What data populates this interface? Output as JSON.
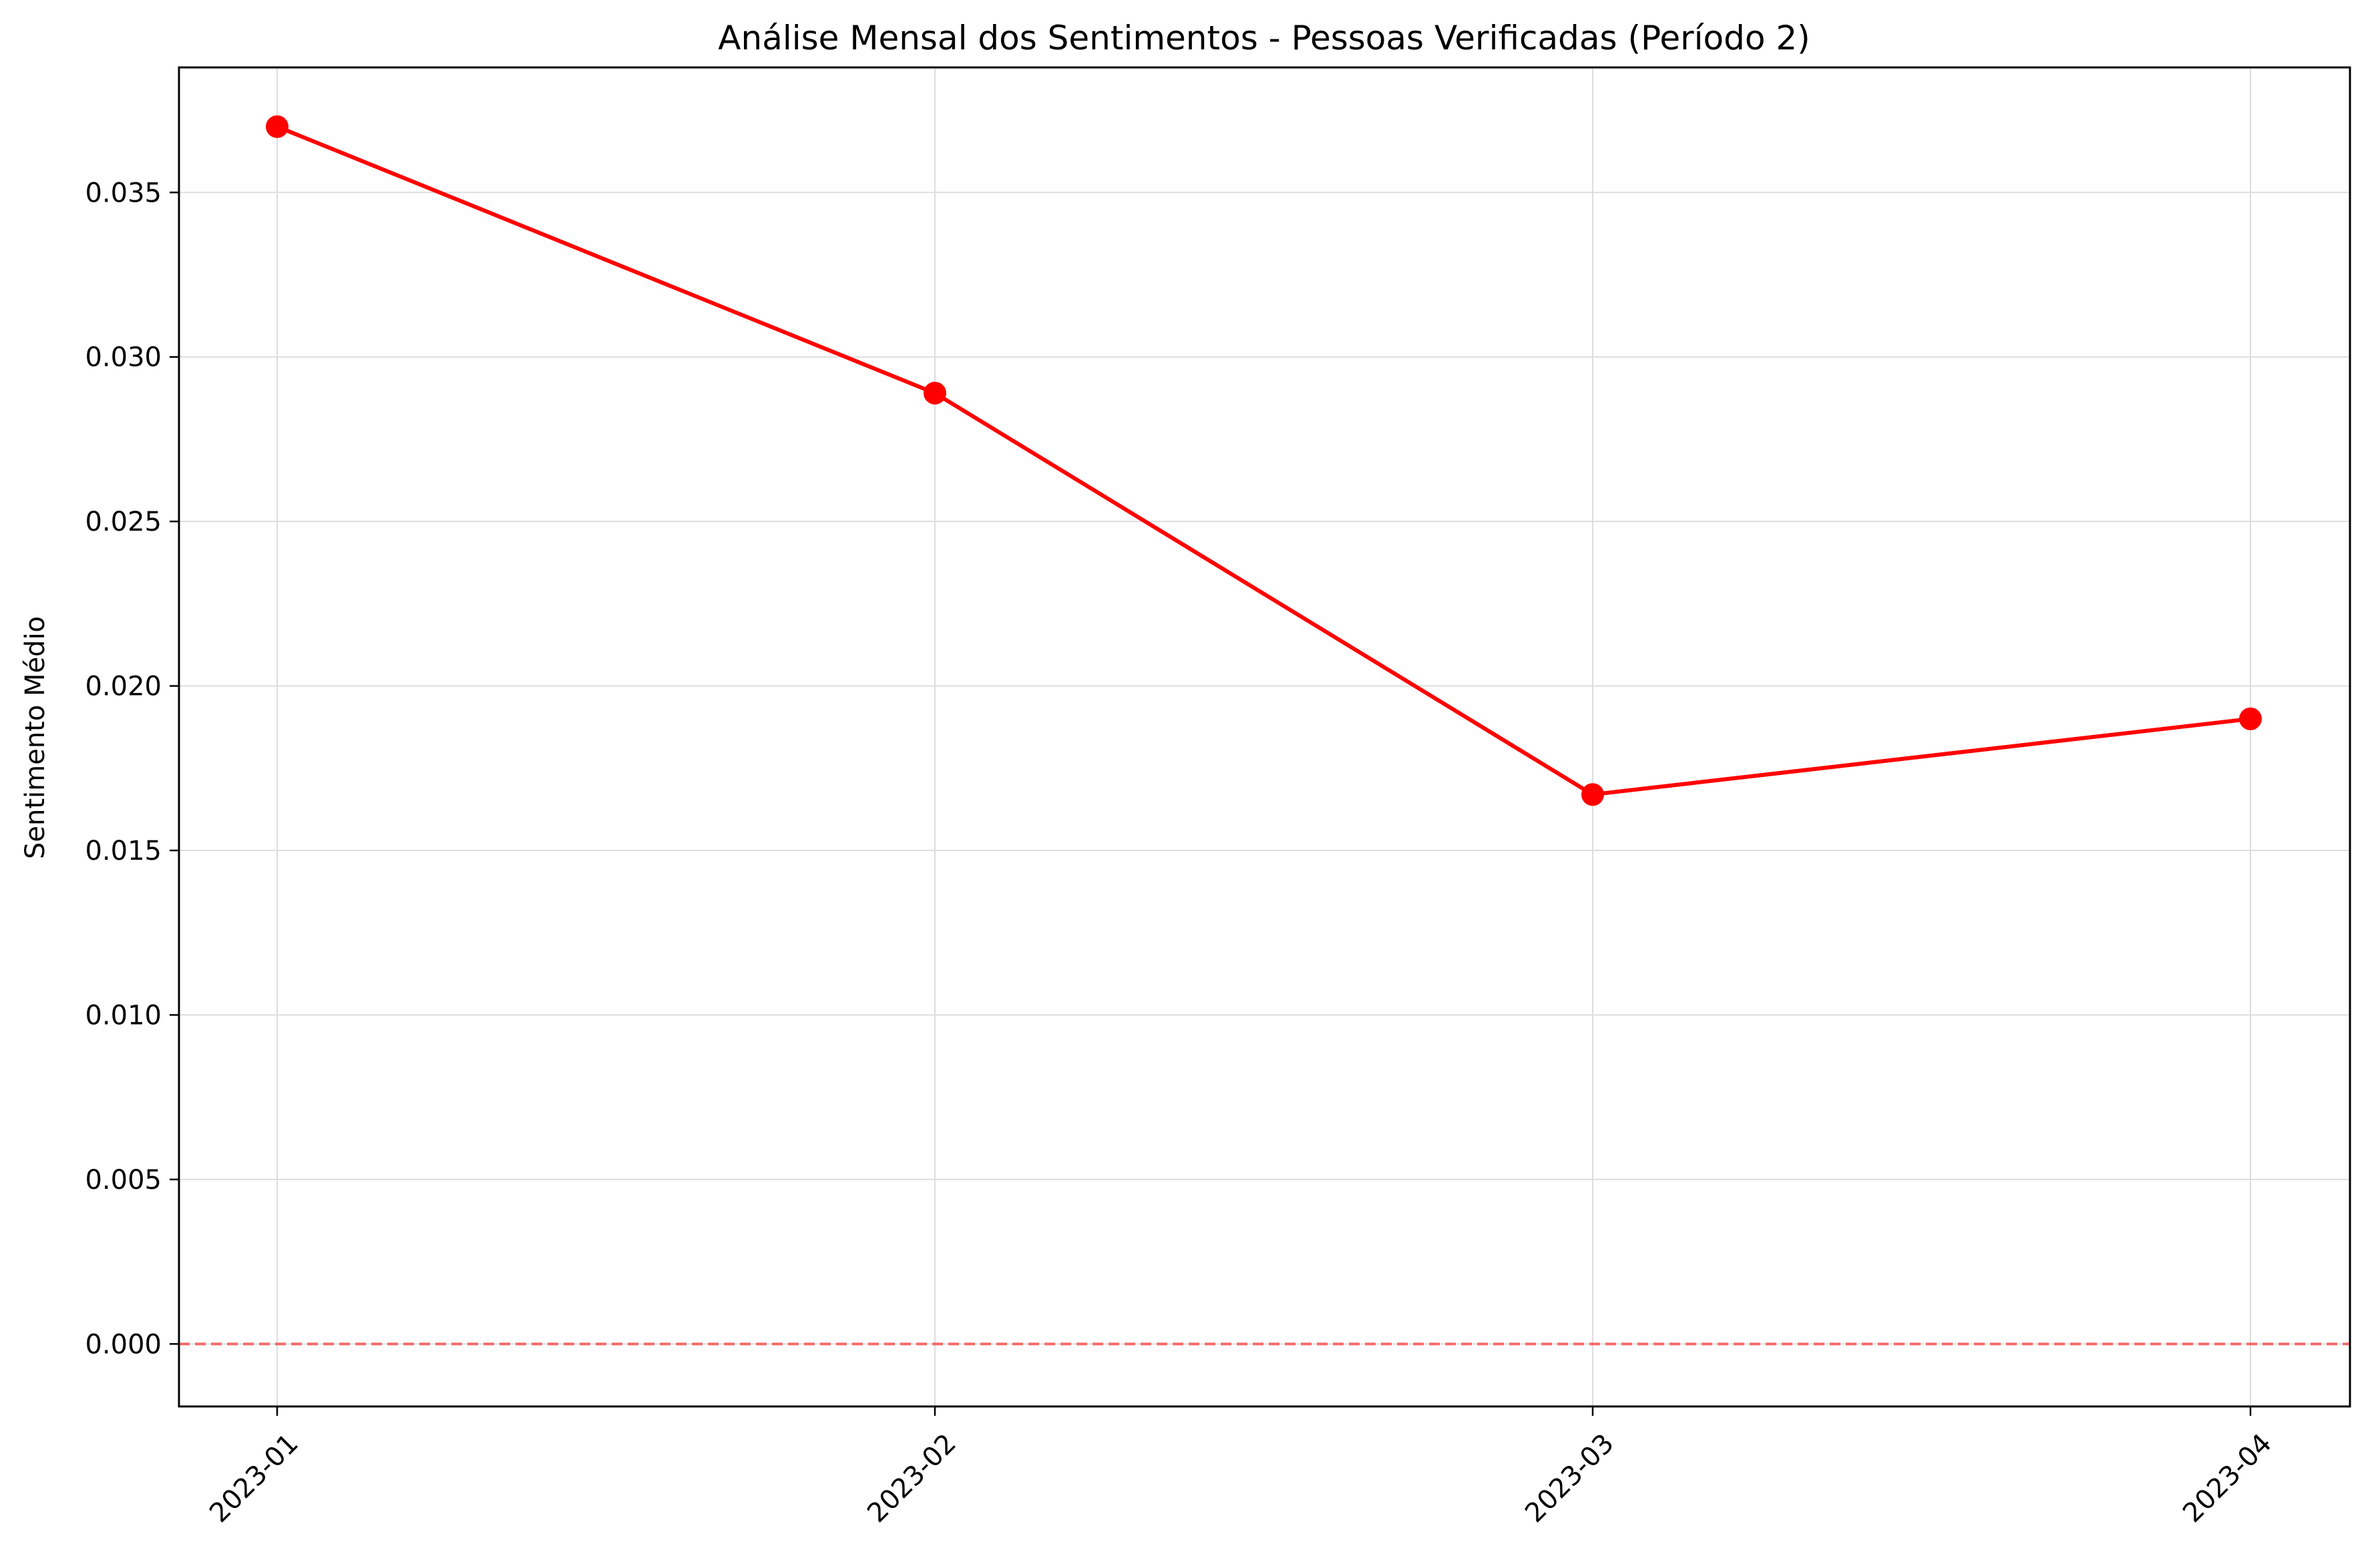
{
  "chart_data": {
    "type": "line",
    "title": "Análise Mensal dos Sentimentos - Pessoas Verificadas (Período 2)",
    "xlabel": "",
    "ylabel": "Sentimento Médio",
    "categories": [
      "2023-01",
      "2023-02",
      "2023-03",
      "2023-04"
    ],
    "series": [
      {
        "values": [
          0.037,
          0.0289,
          0.0167,
          0.019
        ],
        "color": "#ff0000"
      }
    ],
    "ylim": [
      -0.0019,
      0.0388
    ],
    "yticks": [
      0.0,
      0.005,
      0.01,
      0.015,
      0.02,
      0.025,
      0.03,
      0.035
    ],
    "ytick_labels": [
      "0.000",
      "0.005",
      "0.010",
      "0.015",
      "0.020",
      "0.025",
      "0.030",
      "0.035"
    ],
    "reference_line": {
      "y": 0,
      "color": "#ff0000",
      "style": "dashed"
    },
    "grid": true,
    "xtick_rotation": 45
  }
}
